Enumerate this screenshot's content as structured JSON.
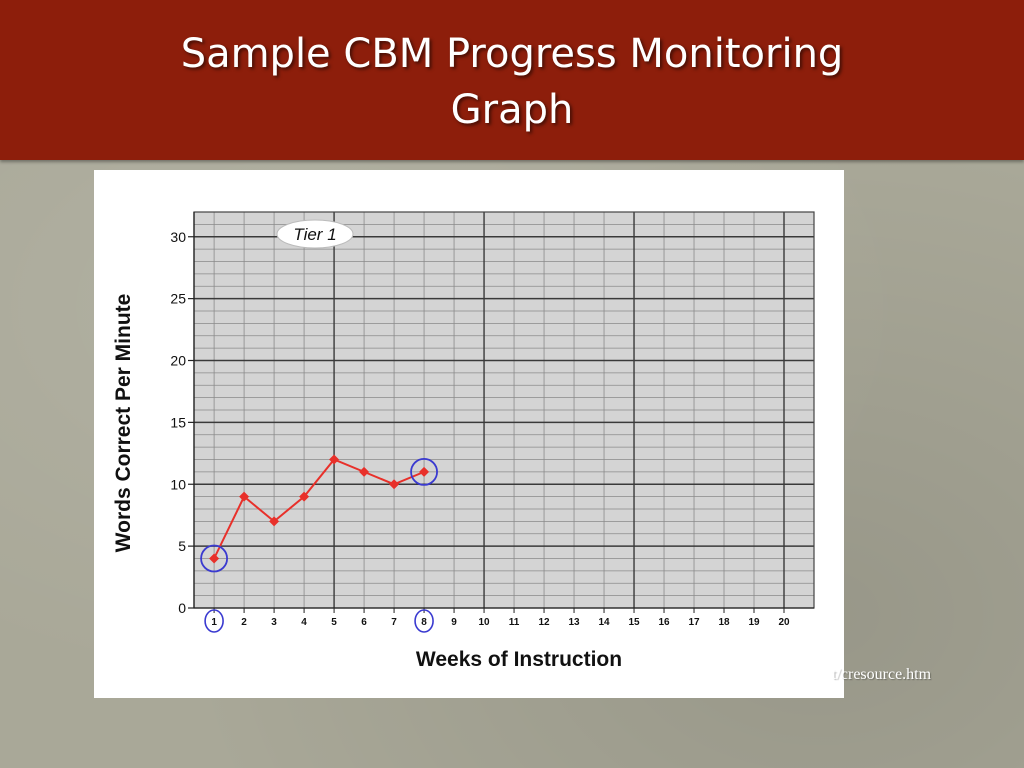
{
  "slide": {
    "title_line1": "Sample CBM Progress Monitoring",
    "title_line2": "Graph",
    "source_fragment": "t/cresource.htm"
  },
  "colors": {
    "title_bar": "#8d1e0b",
    "series_line": "#e8302a",
    "highlight_circle": "#3a3ad0"
  },
  "chart_data": {
    "type": "line",
    "annotation": "Tier 1",
    "xlabel": "Weeks of Instruction",
    "ylabel": "Words Correct Per Minute",
    "x_ticks": [
      1,
      2,
      3,
      4,
      5,
      6,
      7,
      8,
      9,
      10,
      11,
      12,
      13,
      14,
      15,
      16,
      17,
      18,
      19,
      20
    ],
    "y_ticks": [
      0,
      5,
      10,
      15,
      20,
      25,
      30
    ],
    "xlim": [
      0.33,
      21
    ],
    "ylim": [
      0,
      32
    ],
    "grid": true,
    "series": [
      {
        "x": [
          1,
          2,
          3,
          4,
          5,
          6,
          7,
          8
        ],
        "y": [
          4,
          9,
          7,
          9,
          12,
          11,
          10,
          11
        ]
      }
    ],
    "circled_weeks": [
      1,
      8
    ]
  }
}
